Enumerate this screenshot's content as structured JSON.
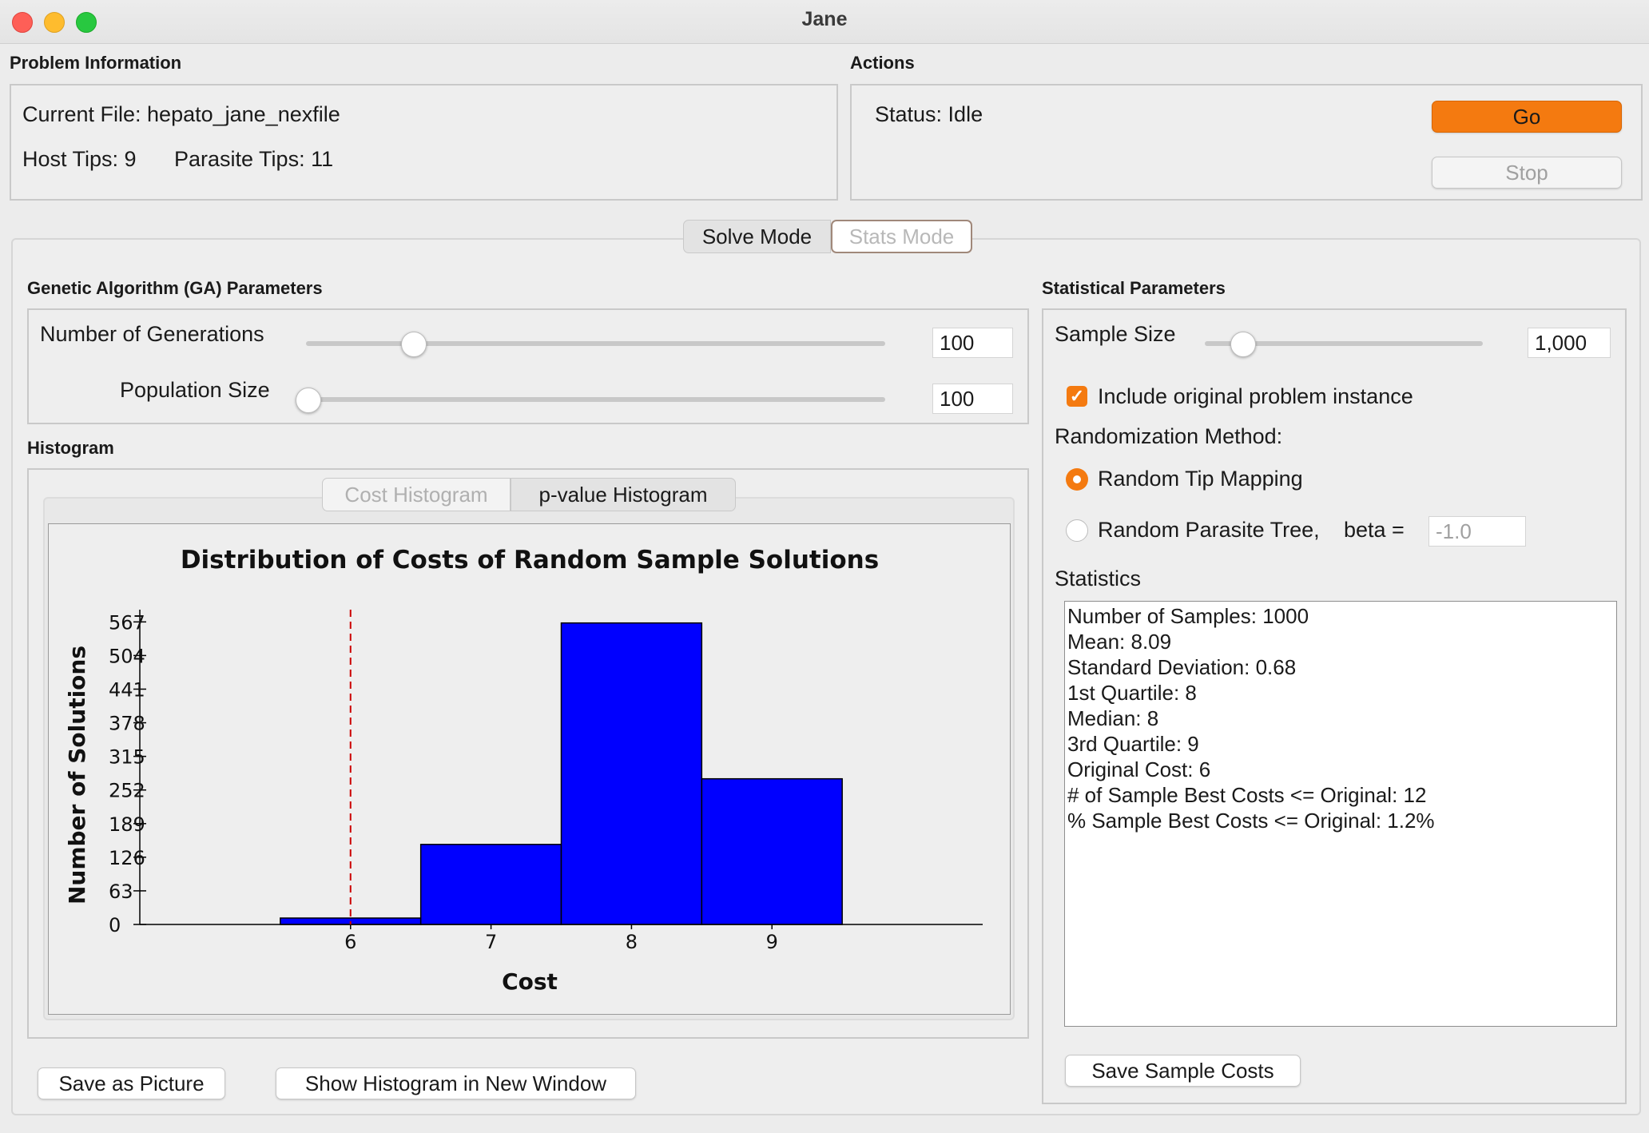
{
  "window": {
    "title": "Jane"
  },
  "problem_info": {
    "header": "Problem Information",
    "current_file": "Current File: hepato_jane_nexfile",
    "host_tips": "Host Tips: 9",
    "parasite_tips": "Parasite Tips: 11"
  },
  "actions": {
    "header": "Actions",
    "status": "Status: Idle",
    "go_label": "Go",
    "stop_label": "Stop"
  },
  "mode_tabs": [
    {
      "label": "Solve Mode"
    },
    {
      "label": "Stats Mode"
    }
  ],
  "ga_params": {
    "header": "Genetic Algorithm (GA) Parameters",
    "generations_label": "Number of Generations",
    "generations_value": "100",
    "generations_slider_level": 0.1,
    "population_label": "Population Size",
    "population_value": "100",
    "population_slider_level": 0.0
  },
  "histogram": {
    "header": "Histogram",
    "tabs": [
      {
        "label": "Cost Histogram"
      },
      {
        "label": "p-value Histogram"
      }
    ],
    "save_picture_label": "Save as Picture",
    "new_window_label": "Show Histogram in New Window"
  },
  "stats_params": {
    "header": "Statistical Parameters",
    "sample_size_label": "Sample Size",
    "sample_size_value": "1,000",
    "sample_size_slider_level": 0.1,
    "include_original_label": "Include original problem instance",
    "randomization_label": "Randomization Method:",
    "random_tip_label": "Random Tip Mapping",
    "random_tree_label": "Random Parasite Tree,",
    "beta_label": "beta =",
    "beta_value": "-1.0",
    "statistics_label": "Statistics",
    "statistics_lines": [
      "Number of Samples: 1000",
      "Mean: 8.09",
      "Standard Deviation: 0.68",
      "1st Quartile: 8",
      "Median: 8",
      "3rd Quartile: 9",
      "Original Cost: 6",
      "# of Sample Best Costs <= Original: 12",
      "% Sample Best Costs <= Original: 1.2%"
    ],
    "save_costs_label": "Save Sample Costs"
  },
  "chart_data": {
    "type": "bar",
    "title": "Distribution of Costs of Random Sample Solutions",
    "xlabel": "Cost",
    "ylabel": "Number of Solutions",
    "categories": [
      "6",
      "7",
      "8",
      "9"
    ],
    "values": [
      12,
      150,
      565,
      273
    ],
    "xlim": [
      4.5,
      10.5
    ],
    "ylim": [
      0,
      575
    ],
    "yticks": [
      0,
      63,
      126,
      189,
      252,
      315,
      378,
      441,
      504,
      567
    ],
    "yticklabels": [
      "0",
      "63",
      "126",
      "189",
      "252",
      "315",
      "378",
      "441",
      "504",
      "567"
    ],
    "original_cost_marker": 6,
    "bar_color": "#0000ff",
    "marker_color": "#cc0000",
    "grid": false
  },
  "colors": {
    "accent": "#f47a10"
  }
}
